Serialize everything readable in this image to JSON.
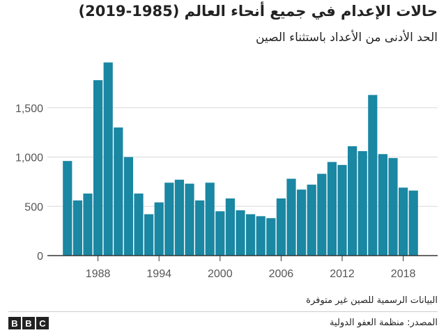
{
  "header": {
    "title": "حالات الإعدام في جميع أنحاء العالم (1985-2019)",
    "subtitle": "الحد الأدنى من الأعداد باستثناء الصين"
  },
  "footer": {
    "note": "البيانات الرسمية للصين غير متوفرة",
    "source": "المصدر: منظمة العفو الدولية",
    "logo": [
      "B",
      "B",
      "C"
    ]
  },
  "colors": {
    "bar": "#1a87a3",
    "grid": "#d9d9d9",
    "axis": "#333333",
    "text": "#555555"
  },
  "chart_data": {
    "type": "bar",
    "x": [
      1985,
      1986,
      1987,
      1988,
      1989,
      1990,
      1991,
      1992,
      1993,
      1994,
      1995,
      1996,
      1997,
      1998,
      1999,
      2000,
      2001,
      2002,
      2003,
      2004,
      2005,
      2006,
      2007,
      2008,
      2009,
      2010,
      2011,
      2012,
      2013,
      2014,
      2015,
      2016,
      2017,
      2018,
      2019
    ],
    "values": [
      960,
      560,
      630,
      1780,
      1960,
      1300,
      1000,
      630,
      420,
      540,
      740,
      770,
      730,
      560,
      740,
      450,
      580,
      460,
      420,
      400,
      380,
      580,
      780,
      670,
      720,
      830,
      950,
      920,
      1110,
      1060,
      1630,
      1030,
      990,
      690,
      660
    ],
    "xticks": [
      1988,
      1994,
      2000,
      2006,
      2012,
      2018
    ],
    "xtick_labels": [
      "1988",
      "1994",
      "2000",
      "2006",
      "2012",
      "2018"
    ],
    "yticks": [
      0,
      500,
      1000,
      1500
    ],
    "ytick_labels": [
      "0",
      "500",
      "1,000",
      "1,500"
    ],
    "ylim": [
      0,
      2000
    ],
    "grid": true
  }
}
